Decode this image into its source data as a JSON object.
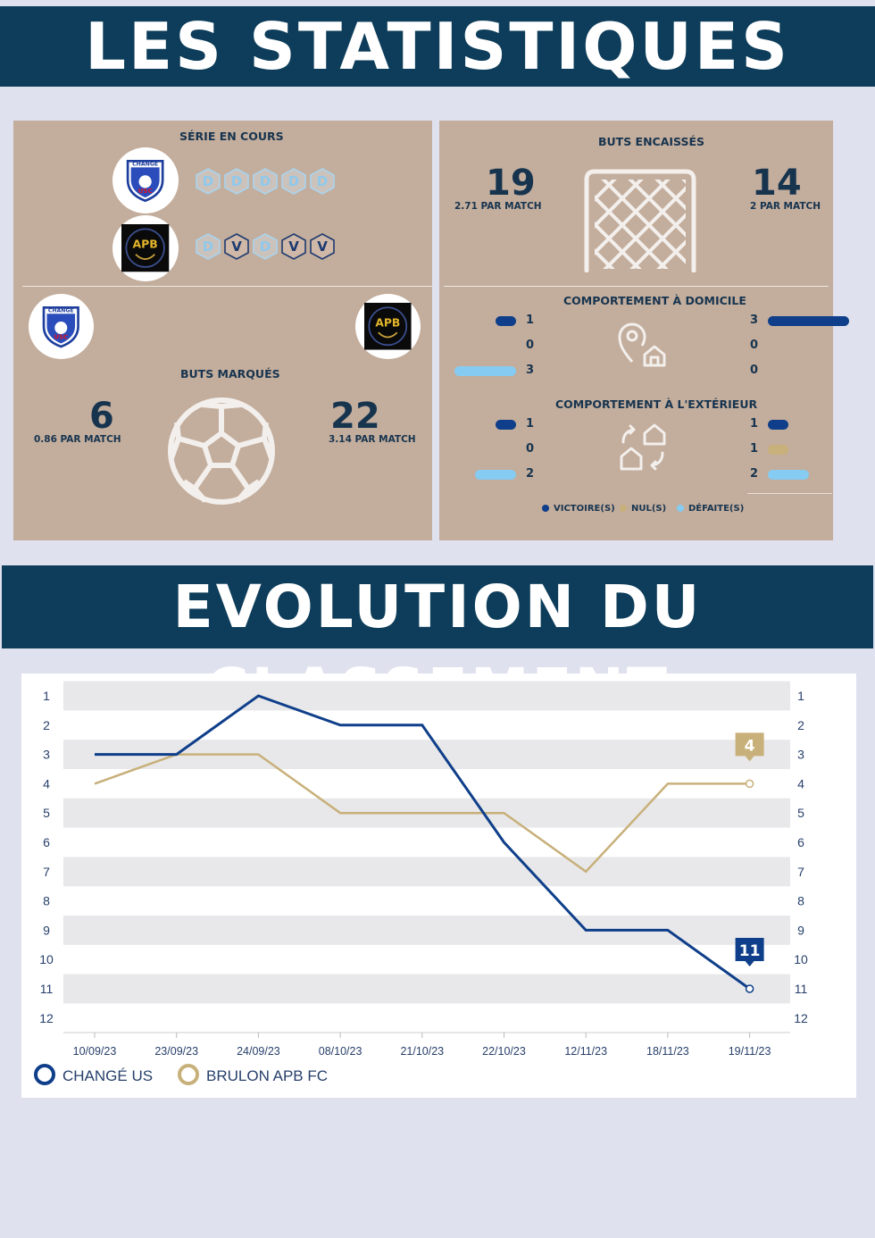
{
  "titles": {
    "stats": "LES STATISTIQUES",
    "evolution": "EVOLUTION DU CLASSEMENT"
  },
  "colors": {
    "navy": "#0d3d5a",
    "team1": "#0f3f8a",
    "team2": "#c8b07a",
    "light_blue": "#86cbf1",
    "panel": "#c3ad9c"
  },
  "serie": {
    "title": "SÉRIE EN COURS",
    "team1_results": [
      "D",
      "D",
      "D",
      "D",
      "D"
    ],
    "team2_results": [
      "D",
      "V",
      "D",
      "V",
      "V"
    ]
  },
  "buts_encaisses": {
    "title": "BUTS ENCAISSÉS",
    "team1_value": "19",
    "team1_per_match": "2.71 PAR MATCH",
    "team2_value": "14",
    "team2_per_match": "2 PAR MATCH",
    "icon": "goal-net-icon"
  },
  "buts_marques": {
    "title": "BUTS MARQUÉS",
    "team1_value": "6",
    "team1_per_match": "0.86 PAR MATCH",
    "team2_value": "22",
    "team2_per_match": "3.14 PAR MATCH",
    "icon": "soccer-ball-icon"
  },
  "logos": {
    "team1_text": "CHANGÉ",
    "team1_abbr": "USC",
    "team2_abbr": "APB"
  },
  "domicile": {
    "title": "COMPORTEMENT À DOMICILE",
    "team1": {
      "victoires": 1,
      "nuls": 0,
      "defaites": 3
    },
    "team2": {
      "victoires": 3,
      "nuls": 0,
      "defaites": 0
    }
  },
  "exterieur": {
    "title": "COMPORTEMENT À L'EXTÉRIEUR",
    "team1": {
      "victoires": 1,
      "nuls": 0,
      "defaites": 2
    },
    "team2": {
      "victoires": 1,
      "nuls": 1,
      "defaites": 2
    }
  },
  "legend_results": {
    "victoires": "VICTOIRE(S)",
    "nuls": "NUL(S)",
    "defaites": "DÉFAITE(S)"
  },
  "chart_data": {
    "type": "line",
    "categories": [
      "10/09/23",
      "23/09/23",
      "24/09/23",
      "08/10/23",
      "21/10/23",
      "22/10/23",
      "12/11/23",
      "18/11/23",
      "19/11/23"
    ],
    "series": [
      {
        "name": "CHANGÉ US",
        "values": [
          3,
          3,
          1,
          2,
          2,
          6,
          9,
          9,
          11
        ]
      },
      {
        "name": "BRULON APB FC",
        "values": [
          4,
          3,
          3,
          5,
          5,
          5,
          7,
          4,
          4
        ]
      }
    ],
    "y_ticks": [
      1,
      2,
      3,
      4,
      5,
      6,
      7,
      8,
      9,
      10,
      11,
      12
    ],
    "ylim": [
      1,
      12
    ],
    "y_inverted": true,
    "last_value_labels": [
      "11",
      "4"
    ],
    "legend_placement": "bottom-left"
  }
}
